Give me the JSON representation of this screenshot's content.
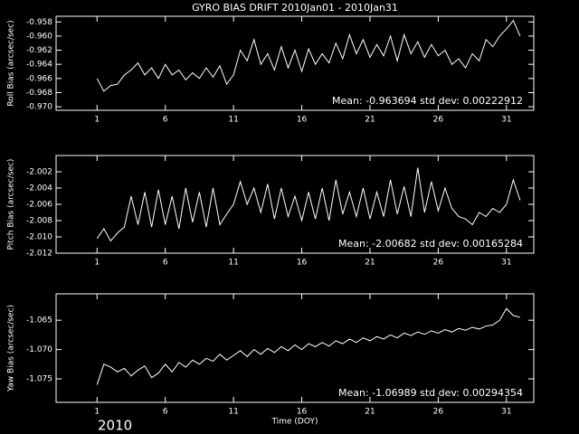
{
  "title": "GYRO BIAS DRIFT 2010Jan01 - 2010Jan31",
  "footer": "2010",
  "chart_data": [
    {
      "type": "line",
      "ylabel": "Roll Bias (arcsec/sec)",
      "annotation": "Mean: -0.963694 std dev: 0.00222912",
      "xlim": [
        -2,
        33
      ],
      "xticks": [
        1,
        6,
        11,
        16,
        21,
        26,
        31
      ],
      "ylim": [
        -0.9705,
        -0.9572
      ],
      "yticks": [
        {
          "value": -0.97,
          "label": "-0.970"
        },
        -0.968,
        -0.966,
        -0.964,
        -0.962,
        {
          "value": -0.96,
          "label": "-0.960"
        },
        -0.958
      ],
      "color": "#ffffff",
      "x": [
        1,
        1.5,
        2,
        2.5,
        3,
        3.5,
        4,
        4.5,
        5,
        5.5,
        6,
        6.5,
        7,
        7.5,
        8,
        8.5,
        9,
        9.5,
        10,
        10.5,
        11,
        11.5,
        12,
        12.5,
        13,
        13.5,
        14,
        14.5,
        15,
        15.5,
        16,
        16.5,
        17,
        17.5,
        18,
        18.5,
        19,
        19.5,
        20,
        20.5,
        21,
        21.5,
        22,
        22.5,
        23,
        23.5,
        24,
        24.5,
        25,
        25.5,
        26,
        26.5,
        27,
        27.5,
        28,
        28.5,
        29,
        29.5,
        30,
        30.5,
        31,
        31.5,
        32
      ],
      "values": [
        -0.966,
        -0.9678,
        -0.967,
        -0.9668,
        -0.9655,
        -0.9648,
        -0.9638,
        -0.9655,
        -0.9645,
        -0.966,
        -0.964,
        -0.9655,
        -0.9648,
        -0.9662,
        -0.9652,
        -0.966,
        -0.9645,
        -0.9658,
        -0.9642,
        -0.9668,
        -0.9655,
        -0.962,
        -0.9635,
        -0.9605,
        -0.964,
        -0.9625,
        -0.9648,
        -0.9615,
        -0.9645,
        -0.962,
        -0.965,
        -0.9618,
        -0.964,
        -0.9625,
        -0.9638,
        -0.961,
        -0.9632,
        -0.9598,
        -0.9625,
        -0.9605,
        -0.963,
        -0.9612,
        -0.9628,
        -0.96,
        -0.9635,
        -0.9598,
        -0.9625,
        -0.9608,
        -0.963,
        -0.9612,
        -0.9628,
        -0.962,
        -0.964,
        -0.9632,
        -0.9645,
        -0.9625,
        -0.9635,
        -0.9605,
        -0.9615,
        -0.96,
        -0.959,
        -0.9578,
        -0.96
      ]
    },
    {
      "type": "line",
      "ylabel": "Pitch Bias (arcsec/sec)",
      "annotation": "Mean: -2.00682 std dev: 0.00165284",
      "xlim": [
        -2,
        33
      ],
      "xticks": [
        1,
        6,
        11,
        16,
        21,
        26,
        31
      ],
      "ylim": [
        -2.012,
        -2.0
      ],
      "yticks": [
        -2.012,
        {
          "value": -2.01,
          "label": "-2.010"
        },
        -2.008,
        -2.006,
        -2.004,
        -2.002
      ],
      "color": "#ffffff",
      "x": [
        1,
        1.5,
        2,
        2.5,
        3,
        3.5,
        4,
        4.5,
        5,
        5.5,
        6,
        6.5,
        7,
        7.5,
        8,
        8.5,
        9,
        9.5,
        10,
        10.5,
        11,
        11.5,
        12,
        12.5,
        13,
        13.5,
        14,
        14.5,
        15,
        15.5,
        16,
        16.5,
        17,
        17.5,
        18,
        18.5,
        19,
        19.5,
        20,
        20.5,
        21,
        21.5,
        22,
        22.5,
        23,
        23.5,
        24,
        24.5,
        25,
        25.5,
        26,
        26.5,
        27,
        27.5,
        28,
        28.5,
        29,
        29.5,
        30,
        30.5,
        31,
        31.5,
        32
      ],
      "values": [
        -2.0102,
        -2.009,
        -2.0105,
        -2.0095,
        -2.0088,
        -2.005,
        -2.0085,
        -2.0045,
        -2.0088,
        -2.0042,
        -2.0085,
        -2.005,
        -2.009,
        -2.004,
        -2.0082,
        -2.0045,
        -2.0088,
        -2.004,
        -2.0085,
        -2.0072,
        -2.006,
        -2.0032,
        -2.006,
        -2.004,
        -2.007,
        -2.0035,
        -2.0078,
        -2.004,
        -2.0075,
        -2.005,
        -2.008,
        -2.0045,
        -2.0078,
        -2.004,
        -2.008,
        -2.003,
        -2.0072,
        -2.0045,
        -2.0075,
        -2.004,
        -2.0078,
        -2.0045,
        -2.0075,
        -2.003,
        -2.0072,
        -2.0038,
        -2.0075,
        -2.0015,
        -2.007,
        -2.0032,
        -2.0068,
        -2.004,
        -2.0065,
        -2.0075,
        -2.0078,
        -2.0085,
        -2.007,
        -2.0075,
        -2.0065,
        -2.007,
        -2.006,
        -2.003,
        -2.0055
      ]
    },
    {
      "type": "line",
      "ylabel": "Yaw Bias (arcsec/sec)",
      "xlabel": "Time (DOY)",
      "annotation": "Mean: -1.06989 std dev: 0.00294354",
      "xlim": [
        -2,
        33
      ],
      "xticks": [
        1,
        6,
        11,
        16,
        21,
        26,
        31
      ],
      "ylim": [
        -1.079,
        -1.0605
      ],
      "yticks": [
        -1.075,
        {
          "value": -1.07,
          "label": "-1.070"
        },
        -1.065
      ],
      "color": "#ffffff",
      "x": [
        1,
        1.5,
        2,
        2.5,
        3,
        3.5,
        4,
        4.5,
        5,
        5.5,
        6,
        6.5,
        7,
        7.5,
        8,
        8.5,
        9,
        9.5,
        10,
        10.5,
        11,
        11.5,
        12,
        12.5,
        13,
        13.5,
        14,
        14.5,
        15,
        15.5,
        16,
        16.5,
        17,
        17.5,
        18,
        18.5,
        19,
        19.5,
        20,
        20.5,
        21,
        21.5,
        22,
        22.5,
        23,
        23.5,
        24,
        24.5,
        25,
        25.5,
        26,
        26.5,
        27,
        27.5,
        28,
        28.5,
        29,
        29.5,
        30,
        30.5,
        31,
        31.5,
        32
      ],
      "values": [
        -1.076,
        -1.0725,
        -1.073,
        -1.0738,
        -1.0732,
        -1.0745,
        -1.0735,
        -1.0728,
        -1.0748,
        -1.074,
        -1.0725,
        -1.0738,
        -1.0722,
        -1.073,
        -1.0718,
        -1.0725,
        -1.0715,
        -1.072,
        -1.0708,
        -1.0718,
        -1.071,
        -1.0702,
        -1.0712,
        -1.07,
        -1.0708,
        -1.0698,
        -1.0705,
        -1.0695,
        -1.0702,
        -1.0692,
        -1.07,
        -1.069,
        -1.0695,
        -1.0688,
        -1.0694,
        -1.0685,
        -1.069,
        -1.0682,
        -1.0688,
        -1.068,
        -1.0685,
        -1.0678,
        -1.0682,
        -1.0675,
        -1.068,
        -1.0672,
        -1.0676,
        -1.067,
        -1.0674,
        -1.0668,
        -1.0672,
        -1.0666,
        -1.067,
        -1.0664,
        -1.0667,
        -1.0662,
        -1.0665,
        -1.066,
        -1.0658,
        -1.065,
        -1.063,
        -1.0642,
        -1.0645
      ]
    }
  ]
}
